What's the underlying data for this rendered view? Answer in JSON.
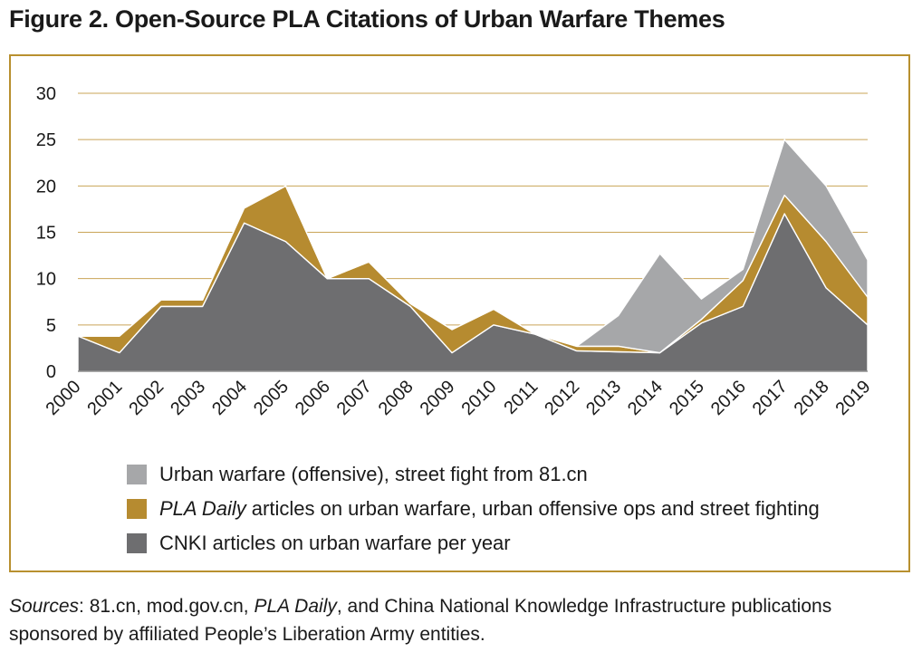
{
  "figure_title": "Figure 2. Open-Source PLA Citations of Urban Warfare Themes",
  "colors": {
    "frame": "#b8902f",
    "grid": "#c9a457",
    "offensive": "#a6a7a9",
    "pla_daily": "#b68b30",
    "cnki": "#6e6e70"
  },
  "chart_data": {
    "type": "area",
    "stacked": true,
    "x": [
      "2000",
      "2001",
      "2002",
      "2003",
      "2004",
      "2005",
      "2006",
      "2007",
      "2008",
      "2009",
      "2010",
      "2011",
      "2012",
      "2013",
      "2014",
      "2015",
      "2016",
      "2017",
      "2018",
      "2019"
    ],
    "yticks": [
      "0",
      "5",
      "10",
      "15",
      "20",
      "25",
      "30"
    ],
    "ylim": [
      0,
      30
    ],
    "grid": "horizontal",
    "legend_position": "bottom",
    "series": [
      {
        "key": "cnki",
        "name": "CNKI articles on urban warfare per year",
        "values": [
          3.8,
          2,
          7,
          7,
          16,
          14,
          10,
          10,
          7,
          2,
          5,
          4,
          2.2,
          2.1,
          2,
          5.2,
          7,
          17,
          9,
          5
        ]
      },
      {
        "key": "pla_daily",
        "name_italic": "PLA Daily",
        "name": "articles on urban warfare, urban offensive ops and street fighting",
        "values": [
          0,
          1.8,
          0.7,
          0.7,
          1.6,
          6,
          0,
          1.8,
          0.3,
          2.5,
          1.7,
          0,
          0.5,
          0.6,
          0,
          0.4,
          2.8,
          2,
          5,
          3
        ]
      },
      {
        "key": "offensive",
        "name": "Urban warfare (offensive), street fight from 81.cn",
        "values": [
          0,
          0,
          0,
          0,
          0,
          0,
          0,
          0,
          0,
          0,
          0,
          0,
          0,
          3.3,
          10.7,
          2.2,
          1.2,
          6,
          6,
          4
        ]
      }
    ]
  },
  "legend": [
    {
      "key": "offensive",
      "text": "Urban warfare (offensive), street fight from 81.cn"
    },
    {
      "key": "pla_daily",
      "italic": "PLA Daily",
      "text": "articles on urban warfare, urban offensive ops and street fighting"
    },
    {
      "key": "cnki",
      "text": "CNKI articles on urban warfare per year"
    }
  ],
  "sources": {
    "label": "Sources",
    "part1": ": 81.cn, mod.gov.cn, ",
    "italic": "PLA Daily",
    "part2": ", and China National Knowledge Infrastructure publications sponsored by affiliated People’s Liberation Army entities."
  }
}
